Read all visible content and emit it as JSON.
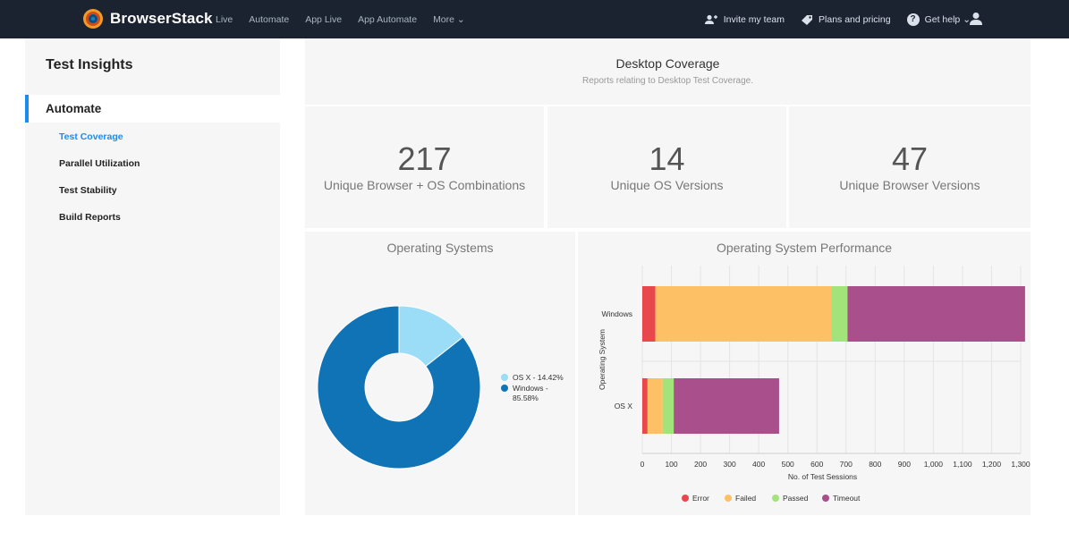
{
  "nav": {
    "brand": "BrowserStack",
    "links": [
      "Live",
      "Automate",
      "App Live",
      "App Automate",
      "More ⌄"
    ],
    "right": {
      "invite": "Invite my team",
      "plans": "Plans and pricing",
      "help": "Get help ⌄"
    }
  },
  "sidebar": {
    "title": "Test Insights",
    "section": "Automate",
    "items": [
      {
        "label": "Test Coverage",
        "active": true
      },
      {
        "label": "Parallel Utilization",
        "active": false
      },
      {
        "label": "Test Stability",
        "active": false
      },
      {
        "label": "Build Reports",
        "active": false
      }
    ]
  },
  "header": {
    "title": "Desktop Coverage",
    "subtitle": "Reports relating to Desktop Test Coverage."
  },
  "stats": [
    {
      "value": "217",
      "label": "Unique Browser + OS Combinations"
    },
    {
      "value": "14",
      "label": "Unique OS Versions"
    },
    {
      "value": "47",
      "label": "Unique Browser Versions"
    }
  ],
  "colors": {
    "osx": "#9bdcf7",
    "windows": "#0f73b6",
    "error": "#e8474b",
    "failed": "#fec064",
    "passed": "#a3e47a",
    "timeout": "#a94f8b",
    "accent": "#1a8cf0"
  },
  "chart_data": [
    {
      "type": "pie",
      "title": "Operating Systems",
      "donut": true,
      "slices": [
        {
          "name": "OS X",
          "value": 14.42,
          "legend": "OS X - 14.42%"
        },
        {
          "name": "Windows",
          "value": 85.58,
          "legend": "Windows - 85.58%"
        }
      ]
    },
    {
      "type": "bar",
      "orientation": "horizontal",
      "stacked": true,
      "title": "Operating System Performance",
      "categories": [
        "Windows",
        "OS X"
      ],
      "series": [
        {
          "name": "Error",
          "values": [
            45,
            18
          ]
        },
        {
          "name": "Failed",
          "values": [
            605,
            52
          ]
        },
        {
          "name": "Passed",
          "values": [
            55,
            38
          ]
        },
        {
          "name": "Timeout",
          "values": [
            610,
            362
          ]
        }
      ],
      "xlabel": "No. of Test Sessions",
      "ylabel": "Operating System",
      "xlim": [
        0,
        1300
      ],
      "xticks": [
        "0",
        "100",
        "200",
        "300",
        "400",
        "500",
        "600",
        "700",
        "800",
        "900",
        "1,000",
        "1,100",
        "1,200",
        "1,300"
      ],
      "legend": "bottom"
    }
  ]
}
